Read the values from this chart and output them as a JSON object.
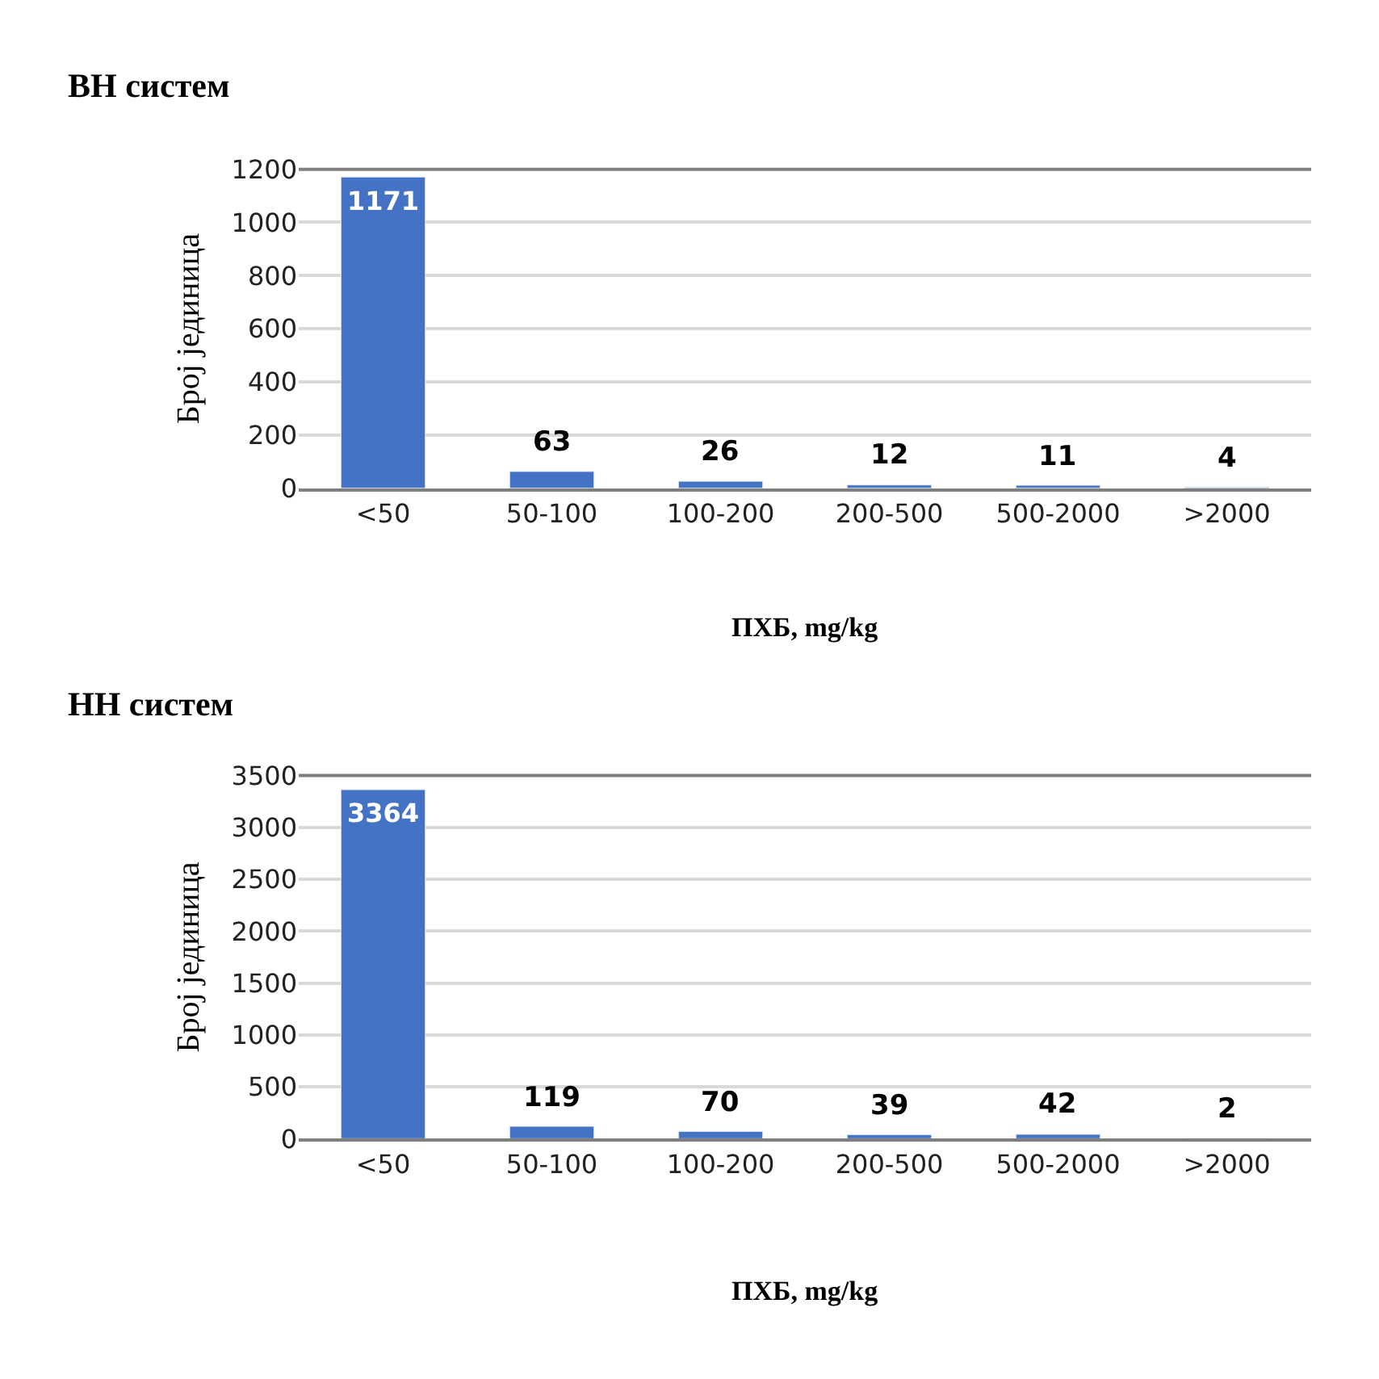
{
  "chart_data": [
    {
      "type": "bar",
      "title": "ВН систем",
      "xlabel": "ПХБ, mg/kg",
      "ylabel": "Број јединица",
      "categories": [
        "<50",
        "50-100",
        "100-200",
        "200-500",
        "500-2000",
        ">2000"
      ],
      "values": [
        1171,
        63,
        26,
        12,
        11,
        4
      ],
      "color": "#4472c4",
      "ylim": [
        0,
        1200
      ],
      "yticks": [
        0,
        200,
        400,
        600,
        800,
        1000,
        1200
      ],
      "grid": "y",
      "data_labels": true
    },
    {
      "type": "bar",
      "title": "НН систем",
      "xlabel": "ПХБ, mg/kg",
      "ylabel": "Број јединица",
      "categories": [
        "<50",
        "50-100",
        "100-200",
        "200-500",
        "500-2000",
        ">2000"
      ],
      "values": [
        3364,
        119,
        70,
        39,
        42,
        2
      ],
      "color": "#4472c4",
      "ylim": [
        0,
        3500
      ],
      "yticks": [
        0,
        500,
        1000,
        1500,
        2000,
        2500,
        3000,
        3500
      ],
      "grid": "y",
      "data_labels": true
    }
  ]
}
